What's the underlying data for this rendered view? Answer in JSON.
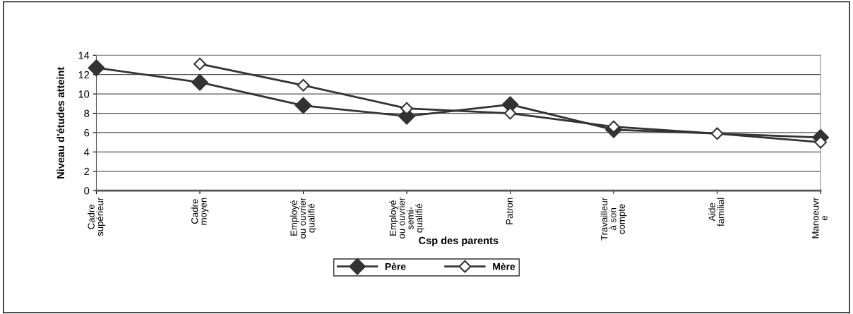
{
  "chart_data": {
    "type": "line",
    "xlabel": "Csp des parents",
    "ylabel": "Niveau d'études atteint",
    "categories": [
      "Cadre\nsupérieur",
      "Cadre\nmoyen",
      "Employé\nou ouvrier\nqualifié",
      "Employé\nou ouvrier\nsemi-\nqualifié",
      "Patron",
      "Travailleur\nà son\ncompte",
      "Aide\nfamilial",
      "Manoeuvr\ne"
    ],
    "series": [
      {
        "name": "Père",
        "color": "#333333",
        "marker": "diamond",
        "values": [
          12.7,
          11.2,
          8.8,
          7.7,
          8.9,
          6.3,
          null,
          5.5
        ]
      },
      {
        "name": "Mère",
        "color": "#333333",
        "marker": "diamond",
        "values": [
          null,
          13.1,
          10.9,
          8.5,
          8.0,
          6.6,
          5.9,
          5.0
        ]
      }
    ],
    "ylim": [
      0,
      14
    ],
    "yticks": [
      0,
      2,
      4,
      6,
      8,
      10,
      12,
      14
    ],
    "grid": "y",
    "legend": "bottom",
    "line_style": "solid"
  }
}
